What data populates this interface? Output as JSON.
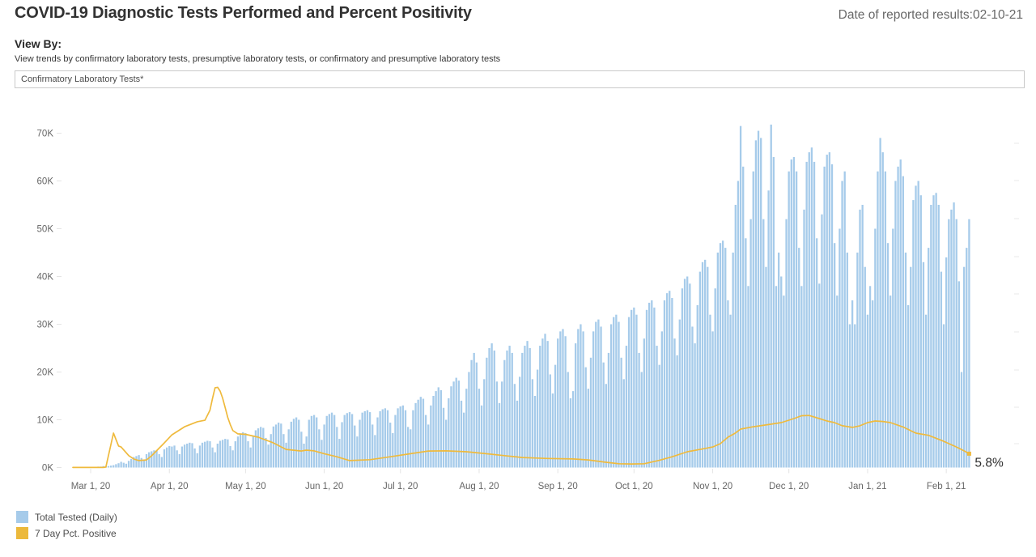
{
  "header": {
    "title": "COVID-19 Diagnostic Tests Performed and Percent Positivity",
    "date_label": "Date of reported results:02-10-21"
  },
  "view_by": {
    "label": "View By:",
    "description": "View trends by confirmatory laboratory tests, presumptive laboratory tests, or confirmatory and presumptive laboratory tests",
    "selected": "Confirmatory Laboratory Tests*"
  },
  "legend": {
    "items": [
      {
        "label": "Total Tested (Daily)",
        "color": "#A6CBEA"
      },
      {
        "label": "7 Day Pct. Positive",
        "color": "#ECB93B"
      }
    ]
  },
  "colors": {
    "bar": "#A6CBEA",
    "line": "#EFBA3D",
    "axis_text": "#666666",
    "annotation_text": "#2e2e2e",
    "tick": "#e4e4e4"
  },
  "chart_data": {
    "type": "bar",
    "subtype": "combo-bar-line",
    "start_date": "2020-03-01",
    "end_date": "2021-02-10",
    "grid": false,
    "legend_position": "bottom-left",
    "left_axis": {
      "unit": "tests per day",
      "ylim": [
        0,
        70000
      ],
      "tick_labels": [
        "0K",
        "10K",
        "20K",
        "30K",
        "40K",
        "50K",
        "60K",
        "70K"
      ]
    },
    "right_axis": {
      "unit": "percent positive",
      "labels_visible": false
    },
    "x_tick_labels": [
      "Mar 1, 20",
      "Apr 1, 20",
      "May 1, 20",
      "Jun 1, 20",
      "Jul 1, 20",
      "Aug 1, 20",
      "Sep 1, 20",
      "Oct 1, 20",
      "Nov 1, 20",
      "Dec 1, 20",
      "Jan 1, 21",
      "Feb 1, 21"
    ],
    "x_tick_days": [
      0,
      31,
      61,
      92,
      122,
      153,
      184,
      214,
      245,
      275,
      306,
      337
    ],
    "bar_series": {
      "name": "Total Tested (Daily)",
      "values_unit": "thousands of tests, daily from 2020-03-01 to 2021-02-10",
      "values_thousands": [
        0.1,
        0.1,
        0.1,
        0.2,
        0.2,
        0.3,
        0.2,
        0.3,
        0.4,
        0.5,
        0.7,
        0.9,
        1.2,
        1.0,
        0.8,
        1.4,
        1.8,
        2.2,
        2.4,
        2.6,
        2.0,
        1.6,
        2.8,
        3.2,
        3.4,
        3.6,
        3.5,
        2.8,
        2.2,
        3.8,
        4.2,
        4.5,
        4.4,
        4.6,
        3.6,
        2.8,
        4.4,
        4.8,
        5.0,
        5.2,
        5.1,
        4.0,
        3.0,
        4.6,
        5.2,
        5.4,
        5.6,
        5.5,
        4.2,
        3.2,
        5.0,
        5.6,
        5.8,
        6.0,
        5.9,
        4.5,
        3.6,
        5.5,
        6.5,
        7.0,
        7.4,
        7.2,
        5.5,
        4.2,
        6.5,
        7.8,
        8.2,
        8.5,
        8.3,
        6.2,
        4.8,
        7.0,
        8.6,
        9.0,
        9.4,
        9.2,
        7.0,
        5.2,
        8.0,
        9.6,
        10.2,
        10.5,
        10.0,
        7.5,
        5.0,
        6.5,
        10.0,
        10.8,
        11.0,
        10.5,
        8.0,
        5.8,
        9.0,
        10.8,
        11.2,
        11.5,
        11.0,
        8.5,
        6.0,
        9.5,
        11.0,
        11.4,
        11.6,
        11.2,
        8.8,
        6.5,
        10.0,
        11.5,
        11.8,
        12.0,
        11.6,
        9.0,
        6.8,
        10.5,
        11.8,
        12.2,
        12.4,
        12.0,
        9.4,
        7.2,
        11.0,
        12.4,
        12.8,
        13.0,
        12.0,
        8.5,
        8.0,
        12.0,
        13.5,
        14.2,
        14.8,
        14.4,
        11.0,
        9.0,
        13.0,
        15.0,
        16.0,
        16.8,
        16.2,
        12.5,
        10.0,
        14.5,
        17.0,
        18.0,
        18.8,
        18.2,
        14.0,
        11.5,
        16.5,
        20.0,
        22.5,
        24.0,
        22.0,
        16.5,
        13.0,
        18.5,
        23.0,
        25.0,
        26.0,
        24.5,
        18.0,
        13.5,
        18.0,
        22.5,
        24.5,
        25.5,
        24.0,
        17.5,
        14.0,
        19.0,
        24.0,
        25.5,
        26.5,
        25.0,
        18.5,
        15.0,
        20.5,
        25.5,
        27.0,
        28.0,
        26.5,
        19.5,
        15.5,
        21.5,
        27.0,
        28.5,
        29.0,
        27.5,
        20.0,
        14.5,
        16.0,
        26.0,
        29.0,
        30.0,
        28.5,
        21.0,
        16.5,
        23.0,
        28.5,
        30.5,
        31.0,
        29.5,
        22.0,
        17.5,
        24.0,
        30.0,
        31.5,
        32.0,
        30.5,
        23.0,
        18.5,
        25.5,
        31.5,
        33.0,
        33.5,
        32.0,
        24.0,
        20.0,
        27.0,
        33.0,
        34.5,
        35.0,
        33.5,
        25.5,
        21.5,
        28.5,
        35.0,
        36.5,
        37.0,
        35.5,
        27.0,
        23.5,
        31.0,
        37.5,
        39.5,
        40.0,
        38.5,
        29.5,
        26.0,
        34.0,
        41.0,
        43.0,
        43.5,
        42.0,
        32.0,
        28.5,
        37.5,
        45.0,
        47.0,
        47.5,
        46.0,
        35.0,
        32.0,
        45.0,
        55.0,
        60.0,
        71.5,
        63.0,
        48.0,
        38.0,
        52.0,
        62.0,
        68.5,
        70.5,
        69.0,
        52.0,
        42.0,
        58.0,
        71.8,
        65.0,
        38.0,
        45.0,
        40.0,
        36.0,
        52.0,
        62.0,
        64.5,
        65.0,
        62.0,
        46.0,
        38.0,
        54.0,
        64.0,
        66.0,
        67.0,
        64.0,
        48.0,
        38.5,
        53.0,
        63.0,
        65.5,
        66.0,
        63.5,
        47.0,
        36.0,
        50.0,
        60.0,
        62.0,
        45.0,
        30.0,
        35.0,
        30.0,
        45.0,
        54.0,
        55.0,
        42.0,
        32.0,
        38.0,
        35.0,
        50.0,
        62.0,
        69.0,
        66.0,
        62.0,
        47.0,
        36.0,
        50.0,
        60.0,
        63.0,
        64.5,
        61.0,
        45.0,
        34.0,
        42.0,
        56.0,
        59.0,
        60.0,
        57.0,
        43.0,
        32.0,
        46.0,
        55.0,
        57.0,
        57.5,
        55.0,
        41.0,
        30.0,
        44.0,
        52.0,
        54.0,
        55.5,
        52.0,
        39.0,
        20.0,
        42.0,
        46.0,
        52.0
      ]
    },
    "line_series": {
      "name": "7 Day Pct. Positive",
      "unit": "percent",
      "points_format": "[day_offset_from_2020-03-01, pct]",
      "points": [
        [
          -7,
          0.05
        ],
        [
          5,
          0.05
        ],
        [
          6,
          0.2
        ],
        [
          9,
          14.4
        ],
        [
          11,
          9.0
        ],
        [
          12,
          8.6
        ],
        [
          15,
          5.0
        ],
        [
          17,
          3.6
        ],
        [
          19,
          2.9
        ],
        [
          22,
          3.2
        ],
        [
          24,
          4.9
        ],
        [
          29,
          10.3
        ],
        [
          32,
          13.7
        ],
        [
          37,
          17.1
        ],
        [
          42,
          19.2
        ],
        [
          45,
          19.8
        ],
        [
          47,
          24.0
        ],
        [
          48,
          29.0
        ],
        [
          49,
          33.4
        ],
        [
          50,
          33.6
        ],
        [
          51,
          32.0
        ],
        [
          52,
          29.0
        ],
        [
          53,
          25.0
        ],
        [
          54,
          21.0
        ],
        [
          55,
          18.0
        ],
        [
          56,
          15.5
        ],
        [
          58,
          14.1
        ],
        [
          61,
          13.9
        ],
        [
          66,
          12.7
        ],
        [
          72,
          10.3
        ],
        [
          77,
          7.6
        ],
        [
          83,
          6.9
        ],
        [
          85,
          7.3
        ],
        [
          88,
          7.0
        ],
        [
          92,
          5.8
        ],
        [
          97,
          4.5
        ],
        [
          102,
          2.9
        ],
        [
          110,
          3.3
        ],
        [
          118,
          4.5
        ],
        [
          126,
          5.8
        ],
        [
          133,
          6.9
        ],
        [
          140,
          7.0
        ],
        [
          148,
          6.6
        ],
        [
          155,
          5.9
        ],
        [
          163,
          5.0
        ],
        [
          170,
          4.2
        ],
        [
          180,
          3.8
        ],
        [
          190,
          3.6
        ],
        [
          196,
          3.2
        ],
        [
          203,
          2.2
        ],
        [
          208,
          1.6
        ],
        [
          213,
          1.5
        ],
        [
          218,
          1.6
        ],
        [
          224,
          3.0
        ],
        [
          229,
          4.5
        ],
        [
          235,
          6.6
        ],
        [
          242,
          8.0
        ],
        [
          245,
          8.6
        ],
        [
          248,
          10.0
        ],
        [
          251,
          12.7
        ],
        [
          254,
          14.5
        ],
        [
          256,
          16.1
        ],
        [
          261,
          17.1
        ],
        [
          267,
          18.0
        ],
        [
          272,
          18.8
        ],
        [
          277,
          20.5
        ],
        [
          280,
          21.7
        ],
        [
          283,
          21.8
        ],
        [
          287,
          20.5
        ],
        [
          290,
          19.5
        ],
        [
          293,
          18.8
        ],
        [
          296,
          17.5
        ],
        [
          300,
          16.8
        ],
        [
          303,
          17.5
        ],
        [
          306,
          18.8
        ],
        [
          309,
          19.5
        ],
        [
          312,
          19.3
        ],
        [
          315,
          18.8
        ],
        [
          320,
          17.0
        ],
        [
          325,
          14.4
        ],
        [
          330,
          13.5
        ],
        [
          336,
          11.0
        ],
        [
          341,
          8.6
        ],
        [
          344,
          7.0
        ],
        [
          346,
          5.8
        ]
      ],
      "end_label": "5.8%",
      "end_value_pct": 5.8
    }
  }
}
